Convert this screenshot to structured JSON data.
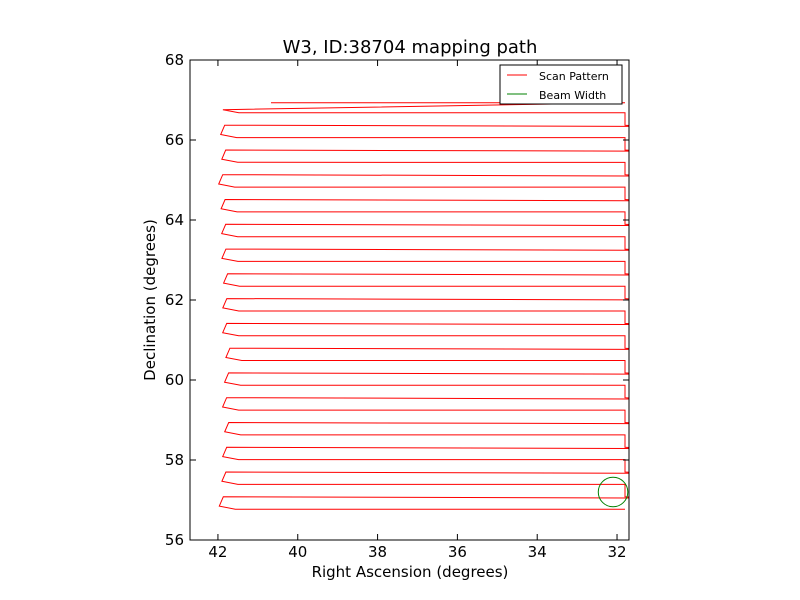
{
  "chart_data": {
    "type": "line",
    "title": "W3, ID:38704 mapping path",
    "xlabel": "Right Ascension (degrees)",
    "ylabel": "Declination (degrees)",
    "xlim": [
      42.7,
      31.7
    ],
    "ylim": [
      56,
      68
    ],
    "xticks": [
      42,
      40,
      38,
      36,
      34,
      32
    ],
    "yticks": [
      56,
      58,
      60,
      62,
      64,
      66,
      68
    ],
    "grid": false,
    "legend_position": "top-right",
    "legend": [
      {
        "label": "Scan Pattern",
        "color": "#ff0000"
      },
      {
        "label": "Beam Width",
        "color": "#008000"
      }
    ],
    "series": [
      {
        "name": "Scan Pattern",
        "color": "#ff0000",
        "scan": {
          "dec_start": 56.77,
          "dec_end": 66.68,
          "num_rows": 33,
          "ra_east": 41.8,
          "ra_west": 31.8,
          "start_ra": 31.8,
          "final_row": {
            "ra_from": 40.67,
            "ra_to": 31.8,
            "dec": 66.93
          }
        }
      },
      {
        "name": "Beam Width",
        "color": "#008000",
        "circle": {
          "ra": 32.1,
          "dec": 57.2,
          "radius_deg": 0.37
        }
      }
    ]
  }
}
